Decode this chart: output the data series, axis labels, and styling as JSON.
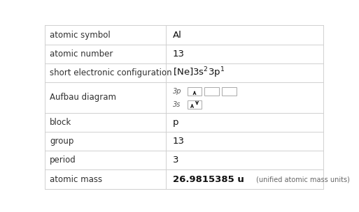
{
  "rows": [
    {
      "label": "atomic symbol",
      "value": "Al",
      "type": "text",
      "bold": false
    },
    {
      "label": "atomic number",
      "value": "13",
      "type": "text",
      "bold": false
    },
    {
      "label": "short electronic configuration",
      "value": "",
      "type": "config"
    },
    {
      "label": "Aufbau diagram",
      "value": "",
      "type": "aufbau"
    },
    {
      "label": "block",
      "value": "p",
      "type": "text",
      "bold": false
    },
    {
      "label": "group",
      "value": "13",
      "type": "text",
      "bold": false
    },
    {
      "label": "period",
      "value": "3",
      "type": "text",
      "bold": false
    },
    {
      "label": "atomic mass",
      "value": "26.9815385 u",
      "extra": "(unified atomic mass units)",
      "type": "mass"
    }
  ],
  "row_heights": [
    1.0,
    1.0,
    1.0,
    1.65,
    1.0,
    1.0,
    1.0,
    1.0
  ],
  "col_split": 0.435,
  "bg_color": "#ffffff",
  "grid_color": "#d0d0d0",
  "label_color": "#303030",
  "value_color": "#111111",
  "label_fontsize": 8.5,
  "value_fontsize": 9.5,
  "small_fontsize": 7.0
}
